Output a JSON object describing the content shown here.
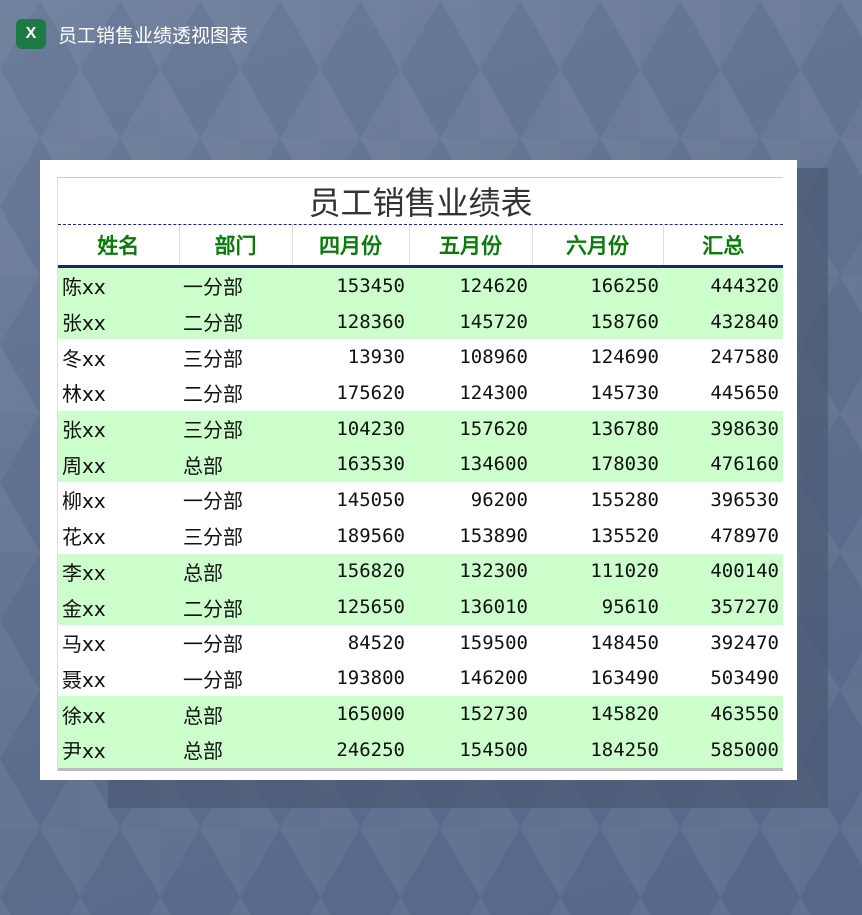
{
  "app": {
    "title": "员工销售业绩透视图表",
    "icon": "excel-icon"
  },
  "sheet": {
    "title": "员工销售业绩表",
    "headers": [
      "姓名",
      "部门",
      "四月份",
      "五月份",
      "六月份",
      "汇总"
    ],
    "rows": [
      [
        "陈xx",
        "一分部",
        "153450",
        "124620",
        "166250",
        "444320"
      ],
      [
        "张xx",
        "二分部",
        "128360",
        "145720",
        "158760",
        "432840"
      ],
      [
        "冬xx",
        "三分部",
        "13930",
        "108960",
        "124690",
        "247580"
      ],
      [
        "林xx",
        "二分部",
        "175620",
        "124300",
        "145730",
        "445650"
      ],
      [
        "张xx",
        "三分部",
        "104230",
        "157620",
        "136780",
        "398630"
      ],
      [
        "周xx",
        "总部",
        "163530",
        "134600",
        "178030",
        "476160"
      ],
      [
        "柳xx",
        "一分部",
        "145050",
        "96200",
        "155280",
        "396530"
      ],
      [
        "花xx",
        "三分部",
        "189560",
        "153890",
        "135520",
        "478970"
      ],
      [
        "李xx",
        "总部",
        "156820",
        "132300",
        "111020",
        "400140"
      ],
      [
        "金xx",
        "二分部",
        "125650",
        "136010",
        "95610",
        "357270"
      ],
      [
        "马xx",
        "一分部",
        "84520",
        "159500",
        "148450",
        "392470"
      ],
      [
        "聂xx",
        "一分部",
        "193800",
        "146200",
        "163490",
        "503490"
      ],
      [
        "徐xx",
        "总部",
        "165000",
        "152730",
        "145820",
        "463550"
      ],
      [
        "尹xx",
        "总部",
        "246250",
        "154500",
        "184250",
        "585000"
      ]
    ],
    "colors": {
      "header_text": "#0a7a0a",
      "band": "#ccffcc",
      "rule": "#1a237e"
    }
  }
}
